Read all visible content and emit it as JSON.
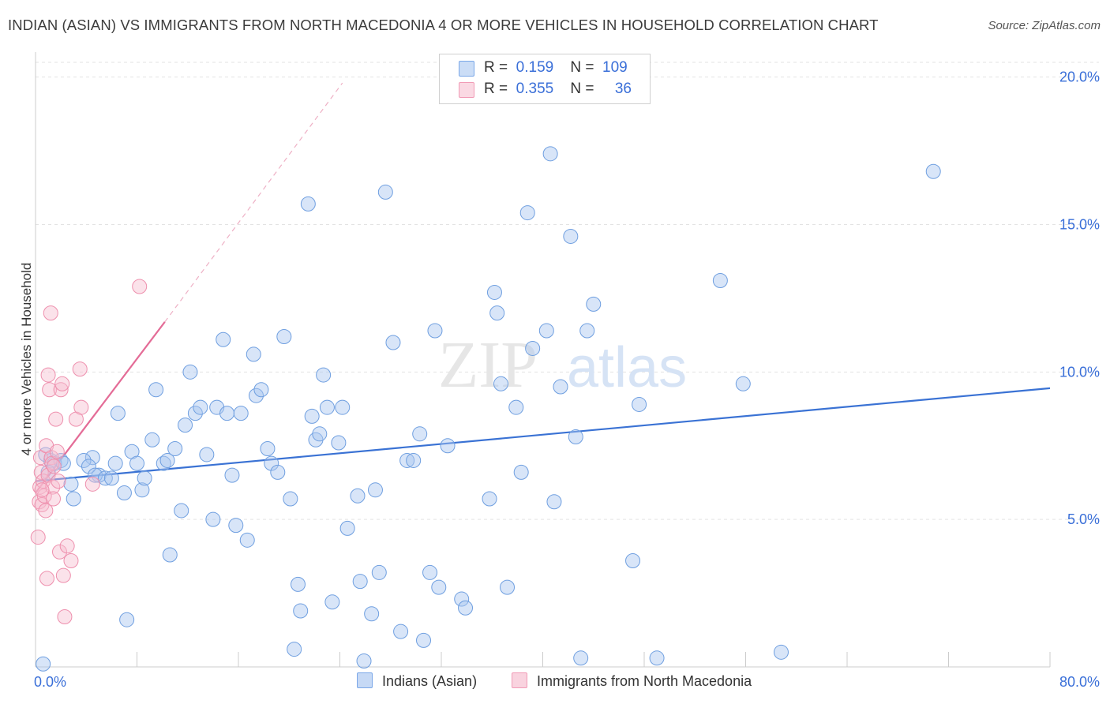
{
  "title": "INDIAN (ASIAN) VS IMMIGRANTS FROM NORTH MACEDONIA 4 OR MORE VEHICLES IN HOUSEHOLD CORRELATION CHART",
  "source": "Source: ZipAtlas.com",
  "watermark": {
    "zip": "ZIP",
    "atlas": "atlas"
  },
  "legend_top": {
    "rows": [
      {
        "r_label": "R =",
        "r_value": "0.159",
        "n_label": "N =",
        "n_value": "109",
        "color": "#7aa7e8"
      },
      {
        "r_label": "R =",
        "r_value": "0.355",
        "n_label": "N =",
        "n_value": "36",
        "color": "#f19bb6"
      }
    ]
  },
  "legend_bottom": {
    "items": [
      {
        "label": "Indians (Asian)",
        "color": "#a9c6f0"
      },
      {
        "label": "Immigrants from North Macedonia",
        "color": "#f6bfd0"
      }
    ]
  },
  "colors": {
    "blue_fill": "rgba(169,198,240,0.45)",
    "blue_stroke": "#6f9fe0",
    "blue_line": "#3a72d4",
    "pink_fill": "rgba(246,191,208,0.45)",
    "pink_stroke": "#ee8fad",
    "pink_line": "#e46c97",
    "tick": "#3a6fd8",
    "grid": "#e3e3e3"
  },
  "chart_data": {
    "type": "scatter",
    "title": "INDIAN (ASIAN) VS IMMIGRANTS FROM NORTH MACEDONIA 4 OR MORE VEHICLES IN HOUSEHOLD CORRELATION CHART",
    "xlabel": "",
    "ylabel": "4 or more Vehicles in Household",
    "xlim": [
      0,
      80
    ],
    "ylim": [
      0,
      20.5
    ],
    "x_tick_labels": [
      {
        "value": 0,
        "label": "0.0%"
      },
      {
        "value": 80,
        "label": "80.0%"
      }
    ],
    "y_tick_labels": [
      {
        "value": 5,
        "label": "5.0%"
      },
      {
        "value": 10,
        "label": "10.0%"
      },
      {
        "value": 15,
        "label": "15.0%"
      },
      {
        "value": 20,
        "label": "20.0%"
      }
    ],
    "grid": true,
    "legend_position": "bottom",
    "series": [
      {
        "name": "Indians (Asian)",
        "r": 0.159,
        "n": 109,
        "trend": {
          "x0": 0,
          "y0": 6.3,
          "x1": 80,
          "y1": 9.45
        },
        "points": [
          [
            1.2,
            7.0
          ],
          [
            0.8,
            7.2
          ],
          [
            1.5,
            6.9
          ],
          [
            1.0,
            6.6
          ],
          [
            2.0,
            7.0
          ],
          [
            2.2,
            6.9
          ],
          [
            2.8,
            6.2
          ],
          [
            3.0,
            5.7
          ],
          [
            4.5,
            7.1
          ],
          [
            5.0,
            6.5
          ],
          [
            3.8,
            7.0
          ],
          [
            4.2,
            6.8
          ],
          [
            4.7,
            6.5
          ],
          [
            5.5,
            6.4
          ],
          [
            6.0,
            6.4
          ],
          [
            6.3,
            6.9
          ],
          [
            6.5,
            8.6
          ],
          [
            7.0,
            5.9
          ],
          [
            7.2,
            1.6
          ],
          [
            7.6,
            7.3
          ],
          [
            8.0,
            6.9
          ],
          [
            8.4,
            6.0
          ],
          [
            8.6,
            6.4
          ],
          [
            9.2,
            7.7
          ],
          [
            9.5,
            9.4
          ],
          [
            10.1,
            6.9
          ],
          [
            10.4,
            7.0
          ],
          [
            10.6,
            3.8
          ],
          [
            11.0,
            7.4
          ],
          [
            11.5,
            5.3
          ],
          [
            11.8,
            8.2
          ],
          [
            12.2,
            10.0
          ],
          [
            12.6,
            8.6
          ],
          [
            13.0,
            8.8
          ],
          [
            13.5,
            7.2
          ],
          [
            14.0,
            5.0
          ],
          [
            14.3,
            8.8
          ],
          [
            14.8,
            11.1
          ],
          [
            15.1,
            8.6
          ],
          [
            15.5,
            6.5
          ],
          [
            15.8,
            4.8
          ],
          [
            16.2,
            8.6
          ],
          [
            16.7,
            4.3
          ],
          [
            17.2,
            10.6
          ],
          [
            17.4,
            9.2
          ],
          [
            17.8,
            9.4
          ],
          [
            18.3,
            7.4
          ],
          [
            18.6,
            6.9
          ],
          [
            19.1,
            6.6
          ],
          [
            19.6,
            11.2
          ],
          [
            20.1,
            5.7
          ],
          [
            20.4,
            0.6
          ],
          [
            20.7,
            2.8
          ],
          [
            20.9,
            1.9
          ],
          [
            21.5,
            15.7
          ],
          [
            21.8,
            8.5
          ],
          [
            22.1,
            7.7
          ],
          [
            22.4,
            7.9
          ],
          [
            22.7,
            9.9
          ],
          [
            23.0,
            8.8
          ],
          [
            23.4,
            2.2
          ],
          [
            23.9,
            7.6
          ],
          [
            24.2,
            8.8
          ],
          [
            24.6,
            4.7
          ],
          [
            25.4,
            5.8
          ],
          [
            25.6,
            2.9
          ],
          [
            25.9,
            0.2
          ],
          [
            26.5,
            1.8
          ],
          [
            26.8,
            6.0
          ],
          [
            27.1,
            3.2
          ],
          [
            27.6,
            16.1
          ],
          [
            28.2,
            11.0
          ],
          [
            28.8,
            1.2
          ],
          [
            29.3,
            7.0
          ],
          [
            29.8,
            7.0
          ],
          [
            30.3,
            7.9
          ],
          [
            30.6,
            0.9
          ],
          [
            31.1,
            3.2
          ],
          [
            31.5,
            11.4
          ],
          [
            31.8,
            2.7
          ],
          [
            32.5,
            7.5
          ],
          [
            33.6,
            2.3
          ],
          [
            33.9,
            2.0
          ],
          [
            35.8,
            5.7
          ],
          [
            36.2,
            12.7
          ],
          [
            36.4,
            12.0
          ],
          [
            36.7,
            9.6
          ],
          [
            37.2,
            2.7
          ],
          [
            37.9,
            8.8
          ],
          [
            38.3,
            6.6
          ],
          [
            38.8,
            15.4
          ],
          [
            39.2,
            10.8
          ],
          [
            40.3,
            11.4
          ],
          [
            40.6,
            17.4
          ],
          [
            40.9,
            5.6
          ],
          [
            41.4,
            9.5
          ],
          [
            42.2,
            14.6
          ],
          [
            42.6,
            7.8
          ],
          [
            43.0,
            0.3
          ],
          [
            43.5,
            11.4
          ],
          [
            44.0,
            12.3
          ],
          [
            47.1,
            3.6
          ],
          [
            47.6,
            8.9
          ],
          [
            49.0,
            0.3
          ],
          [
            54.0,
            13.1
          ],
          [
            55.8,
            9.6
          ],
          [
            58.8,
            0.5
          ],
          [
            70.8,
            16.8
          ],
          [
            0.6,
            0.1
          ]
        ]
      },
      {
        "name": "Immigrants from North Macedonia",
        "r": 0.355,
        "n": 36,
        "trend": {
          "x0": 0,
          "y0": 5.9,
          "x1": 10.2,
          "y1": 11.7,
          "dash_x1": 24.2,
          "dash_y1": 19.8
        },
        "points": [
          [
            0.2,
            4.4
          ],
          [
            0.3,
            5.6
          ],
          [
            0.35,
            6.1
          ],
          [
            0.4,
            7.1
          ],
          [
            0.45,
            6.6
          ],
          [
            0.5,
            5.5
          ],
          [
            0.6,
            6.3
          ],
          [
            0.7,
            5.8
          ],
          [
            0.8,
            5.3
          ],
          [
            0.85,
            7.5
          ],
          [
            0.9,
            3.0
          ],
          [
            1.0,
            6.5
          ],
          [
            1.0,
            9.9
          ],
          [
            1.1,
            9.4
          ],
          [
            1.2,
            12.0
          ],
          [
            1.25,
            7.1
          ],
          [
            1.3,
            6.9
          ],
          [
            1.35,
            6.1
          ],
          [
            1.4,
            5.7
          ],
          [
            1.45,
            6.8
          ],
          [
            1.6,
            8.4
          ],
          [
            1.7,
            7.3
          ],
          [
            1.8,
            6.3
          ],
          [
            1.9,
            3.9
          ],
          [
            2.0,
            9.4
          ],
          [
            2.1,
            9.6
          ],
          [
            2.2,
            3.1
          ],
          [
            2.3,
            1.7
          ],
          [
            2.5,
            4.1
          ],
          [
            2.8,
            3.6
          ],
          [
            3.2,
            8.4
          ],
          [
            3.5,
            10.1
          ],
          [
            3.6,
            8.8
          ],
          [
            4.5,
            6.2
          ],
          [
            8.2,
            12.9
          ],
          [
            0.5,
            6.0
          ]
        ]
      }
    ]
  }
}
